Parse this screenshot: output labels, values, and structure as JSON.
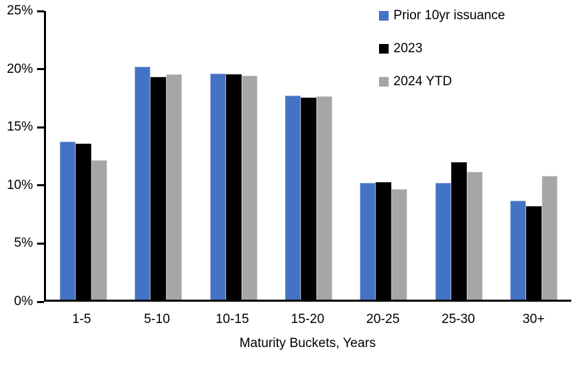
{
  "chart_data": {
    "type": "bar",
    "xlabel": "Maturity Buckets, Years",
    "ylabel": "",
    "ylim": [
      0,
      25
    ],
    "grid": false,
    "legend_position": "top-right",
    "categories": [
      "1-5",
      "5-10",
      "10-15",
      "15-20",
      "20-25",
      "25-30",
      "30+"
    ],
    "series": [
      {
        "name": "Prior 10yr issuance",
        "color": "#4472C4",
        "border_color": "#9DB3E0",
        "values": [
          13.7,
          20.2,
          19.6,
          17.7,
          10.1,
          10.1,
          8.6
        ]
      },
      {
        "name": "2023",
        "color": "#000000",
        "border_color": "#2B2B2B",
        "values": [
          13.5,
          19.3,
          19.5,
          17.5,
          10.2,
          11.9,
          8.1
        ]
      },
      {
        "name": "2024 YTD",
        "color": "#A6A6A6",
        "border_color": "#CFCFCF",
        "values": [
          12.1,
          19.5,
          19.4,
          17.6,
          9.6,
          11.1,
          10.7
        ]
      }
    ],
    "y_ticks": [
      {
        "value": 0,
        "label": "0%"
      },
      {
        "value": 5,
        "label": "5%"
      },
      {
        "value": 10,
        "label": "10%"
      },
      {
        "value": 15,
        "label": "15%"
      },
      {
        "value": 20,
        "label": "20%"
      },
      {
        "value": 25,
        "label": "25%"
      }
    ]
  }
}
